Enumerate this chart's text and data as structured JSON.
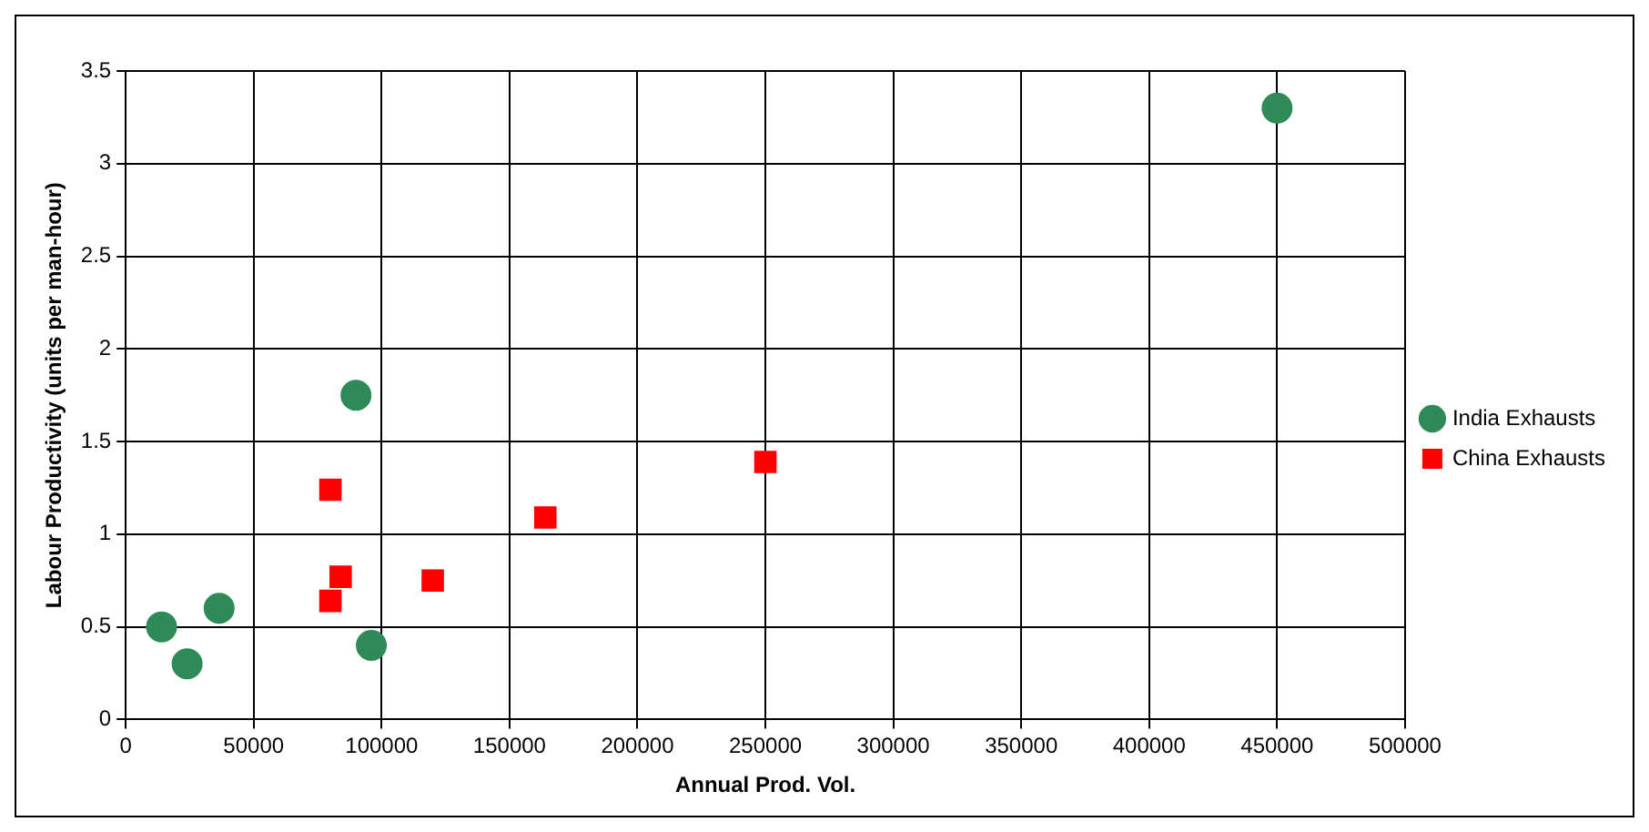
{
  "chart_data": {
    "type": "scatter",
    "xlabel": "Annual Prod. Vol.",
    "ylabel": "Labour Productivity (units per man-hour)",
    "xlim": [
      0,
      500000
    ],
    "xticks": [
      0,
      50000,
      100000,
      150000,
      200000,
      250000,
      300000,
      350000,
      400000,
      450000,
      500000
    ],
    "ylim": [
      0,
      3.5
    ],
    "yticks": [
      0,
      0.5,
      1,
      1.5,
      2,
      2.5,
      3,
      3.5
    ],
    "grid": true,
    "legend": "right",
    "series": [
      {
        "name": "India Exhausts",
        "color": "#2e8b57",
        "marker": "circle",
        "x": [
          14000,
          24000,
          36500,
          90000,
          96000,
          450000
        ],
        "values": [
          0.5,
          0.3,
          0.6,
          1.75,
          0.4,
          3.3
        ]
      },
      {
        "name": "China Exhausts",
        "color": "#ff0000",
        "marker": "square",
        "x": [
          80000,
          84000,
          80000,
          120000,
          164000,
          250000
        ],
        "values": [
          1.24,
          0.77,
          0.64,
          0.75,
          1.09,
          1.39
        ]
      }
    ]
  }
}
